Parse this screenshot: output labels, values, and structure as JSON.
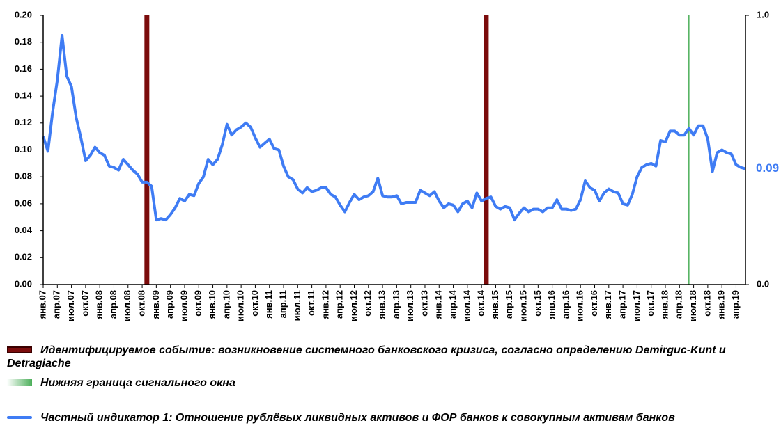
{
  "chart_data": {
    "type": "line",
    "categories": [
      "янв.07",
      null,
      null,
      "апр.07",
      null,
      null,
      "июл.07",
      null,
      null,
      "окт.07",
      null,
      null,
      "янв.08",
      null,
      null,
      "апр.08",
      null,
      null,
      "июл.08",
      null,
      null,
      "окт.08",
      null,
      null,
      "янв.09",
      null,
      null,
      "апр.09",
      null,
      null,
      "июл.09",
      null,
      null,
      "окт.09",
      null,
      null,
      "янв.10",
      null,
      null,
      "апр.10",
      null,
      null,
      "июл.10",
      null,
      null,
      "окт.10",
      null,
      null,
      "янв.11",
      null,
      null,
      "апр.11",
      null,
      null,
      "июл.11",
      null,
      null,
      "окт.11",
      null,
      null,
      "янв.12",
      null,
      null,
      "апр.12",
      null,
      null,
      "июл.12",
      null,
      null,
      "окт.12",
      null,
      null,
      "янв.13",
      null,
      null,
      "апр.13",
      null,
      null,
      "июл.13",
      null,
      null,
      "окт.13",
      null,
      null,
      "янв.14",
      null,
      null,
      "апр.14",
      null,
      null,
      "июл.14",
      null,
      null,
      "окт.14",
      null,
      null,
      "янв.15",
      null,
      null,
      "апр.15",
      null,
      null,
      "июл.15",
      null,
      null,
      "окт.15",
      null,
      null,
      "янв.16",
      null,
      null,
      "апр.16",
      null,
      null,
      "июл.16",
      null,
      null,
      "окт.16",
      null,
      null,
      "янв.17",
      null,
      null,
      "апр.17",
      null,
      null,
      "июл.17",
      null,
      null,
      "окт.17",
      null,
      null,
      "янв.18",
      null,
      null,
      "апр.18",
      null,
      null,
      "июл.18",
      null,
      null,
      "окт.18",
      null,
      null,
      "янв.19",
      null,
      null,
      "апр.19",
      null,
      null
    ],
    "series": [
      {
        "name": "Идентифицируемое событие: возникновение системного банковского кризиса, согласно определению Demirguc-Kunt и Detragiache",
        "type": "bar",
        "axis": "y2",
        "color": "#7b0c0c",
        "values": [
          null,
          null,
          null,
          null,
          null,
          null,
          null,
          null,
          null,
          null,
          null,
          null,
          null,
          null,
          null,
          null,
          null,
          null,
          null,
          null,
          null,
          null,
          1,
          null,
          null,
          null,
          null,
          null,
          null,
          null,
          null,
          null,
          null,
          null,
          null,
          null,
          null,
          null,
          null,
          null,
          null,
          null,
          null,
          null,
          null,
          null,
          null,
          null,
          null,
          null,
          null,
          null,
          null,
          null,
          null,
          null,
          null,
          null,
          null,
          null,
          null,
          null,
          null,
          null,
          null,
          null,
          null,
          null,
          null,
          null,
          null,
          null,
          null,
          null,
          null,
          null,
          null,
          null,
          null,
          null,
          null,
          null,
          null,
          null,
          null,
          null,
          null,
          null,
          null,
          null,
          null,
          null,
          null,
          null,
          1,
          null,
          null,
          null,
          null,
          null,
          null,
          null,
          null,
          null,
          null,
          null,
          null,
          null,
          null,
          null,
          null,
          null,
          null,
          null,
          null,
          null,
          null,
          null,
          null,
          null,
          null,
          null,
          null,
          null,
          null,
          null,
          null,
          null,
          null,
          null,
          null,
          null,
          null,
          null,
          null,
          null,
          null,
          null,
          null,
          null,
          null,
          null,
          null,
          null,
          null,
          null,
          null,
          null,
          null,
          null
        ]
      },
      {
        "name": "Нижняя граница сигнального окна",
        "type": "bar",
        "axis": "y2",
        "color": "#4caf5a",
        "values": [
          null,
          null,
          null,
          null,
          null,
          null,
          null,
          null,
          null,
          null,
          null,
          null,
          null,
          null,
          null,
          null,
          null,
          null,
          null,
          null,
          null,
          null,
          null,
          null,
          null,
          null,
          null,
          null,
          null,
          null,
          null,
          null,
          null,
          null,
          null,
          null,
          null,
          null,
          null,
          null,
          null,
          null,
          null,
          null,
          null,
          null,
          null,
          null,
          null,
          null,
          null,
          null,
          null,
          null,
          null,
          null,
          null,
          null,
          null,
          null,
          null,
          null,
          null,
          null,
          null,
          null,
          null,
          null,
          null,
          null,
          null,
          null,
          null,
          null,
          null,
          null,
          null,
          null,
          null,
          null,
          null,
          null,
          null,
          null,
          null,
          null,
          null,
          null,
          null,
          null,
          null,
          null,
          null,
          null,
          null,
          null,
          null,
          null,
          null,
          null,
          null,
          null,
          null,
          null,
          null,
          null,
          null,
          null,
          null,
          null,
          null,
          null,
          null,
          null,
          null,
          null,
          null,
          null,
          null,
          null,
          null,
          null,
          null,
          null,
          null,
          null,
          null,
          null,
          null,
          null,
          null,
          null,
          null,
          null,
          null,
          null,
          null,
          1,
          null,
          null,
          null,
          null,
          null,
          null,
          null,
          null,
          null,
          null,
          null,
          null
        ]
      },
      {
        "name": "Частный индикатор 1: Отношение рублёвых ликвидных активов и ФОР банков к совокупным активам банков",
        "type": "line",
        "color": "#3f7cf4",
        "values": [
          0.11,
          0.099,
          0.128,
          0.152,
          0.185,
          0.155,
          0.147,
          0.124,
          0.109,
          0.092,
          0.096,
          0.102,
          0.098,
          0.096,
          0.088,
          0.087,
          0.085,
          0.093,
          0.089,
          0.085,
          0.082,
          0.076,
          0.076,
          0.073,
          0.048,
          0.049,
          0.048,
          0.052,
          0.057,
          0.064,
          0.062,
          0.067,
          0.066,
          0.075,
          0.08,
          0.093,
          0.089,
          0.093,
          0.104,
          0.119,
          0.111,
          0.115,
          0.117,
          0.12,
          0.117,
          0.109,
          0.102,
          0.105,
          0.108,
          0.101,
          0.1,
          0.088,
          0.08,
          0.078,
          0.071,
          0.068,
          0.072,
          0.069,
          0.07,
          0.072,
          0.072,
          0.067,
          0.065,
          0.059,
          0.054,
          0.061,
          0.067,
          0.063,
          0.065,
          0.066,
          0.069,
          0.079,
          0.066,
          0.065,
          0.065,
          0.066,
          0.06,
          0.061,
          0.061,
          0.061,
          0.07,
          0.068,
          0.066,
          0.069,
          0.062,
          0.057,
          0.06,
          0.059,
          0.054,
          0.06,
          0.062,
          0.057,
          0.068,
          0.062,
          0.064,
          0.065,
          0.058,
          0.056,
          0.058,
          0.057,
          0.048,
          0.053,
          0.057,
          0.054,
          0.056,
          0.056,
          0.054,
          0.057,
          0.057,
          0.063,
          0.056,
          0.056,
          0.055,
          0.056,
          0.063,
          0.077,
          0.072,
          0.07,
          0.062,
          0.068,
          0.071,
          0.069,
          0.068,
          0.06,
          0.059,
          0.067,
          0.08,
          0.087,
          0.089,
          0.09,
          0.088,
          0.107,
          0.106,
          0.114,
          0.114,
          0.111,
          0.111,
          0.116,
          0.111,
          0.118,
          0.118,
          0.108,
          0.084,
          0.098,
          0.1,
          0.098,
          0.097,
          0.089,
          0.087,
          0.086
        ],
        "value_labels": [
          null,
          null,
          null,
          null,
          null,
          null,
          null,
          null,
          null,
          null,
          null,
          null,
          null,
          null,
          null,
          null,
          null,
          null,
          null,
          null,
          null,
          null,
          null,
          null,
          null,
          null,
          null,
          null,
          null,
          null,
          null,
          null,
          null,
          null,
          null,
          null,
          null,
          null,
          null,
          null,
          null,
          null,
          null,
          null,
          null,
          null,
          null,
          null,
          null,
          null,
          null,
          null,
          null,
          null,
          null,
          null,
          null,
          null,
          null,
          null,
          null,
          null,
          null,
          null,
          null,
          null,
          null,
          null,
          null,
          null,
          null,
          null,
          null,
          null,
          null,
          null,
          null,
          null,
          null,
          null,
          null,
          null,
          null,
          null,
          null,
          null,
          null,
          null,
          null,
          null,
          null,
          null,
          null,
          null,
          null,
          null,
          null,
          null,
          null,
          null,
          null,
          null,
          null,
          null,
          null,
          null,
          null,
          null,
          null,
          null,
          null,
          null,
          null,
          null,
          null,
          null,
          null,
          null,
          null,
          null,
          null,
          null,
          null,
          null,
          null,
          null,
          null,
          null,
          null,
          null,
          null,
          null,
          null,
          null,
          null,
          null,
          null,
          null,
          null,
          null,
          null,
          null,
          null,
          null,
          null,
          null,
          null,
          null,
          null,
          "0.09"
        ]
      }
    ],
    "ylim": [
      0,
      0.2
    ],
    "yticks": [
      {
        "value": 0,
        "label": "0.00"
      },
      {
        "value": 0.02,
        "label": "0.02"
      },
      {
        "value": 0.04,
        "label": "0.04"
      },
      {
        "value": 0.06,
        "label": "0.06"
      },
      {
        "value": 0.08,
        "label": "0.08"
      },
      {
        "value": 0.1,
        "label": "0.10"
      },
      {
        "value": 0.12,
        "label": "0.12"
      },
      {
        "value": 0.14,
        "label": "0.14"
      },
      {
        "value": 0.16,
        "label": "0.16"
      },
      {
        "value": 0.18,
        "label": "0.18"
      },
      {
        "value": 0.2,
        "label": "0.20"
      }
    ],
    "y2lim": [
      0,
      1
    ],
    "y2ticks": [
      {
        "value": 0,
        "label": "0.0"
      },
      {
        "value": 1,
        "label": "1.0"
      }
    ],
    "grid": false
  }
}
